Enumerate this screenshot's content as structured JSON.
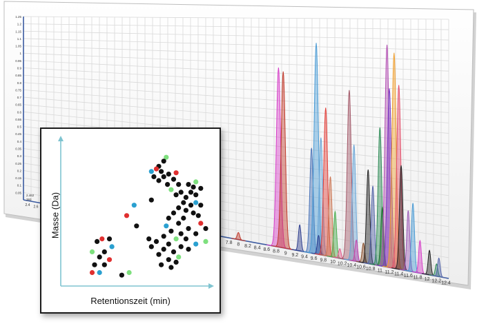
{
  "colors": {
    "axis_blue": "#3a5aa0",
    "inset_axis": "#7fc4d0",
    "grid": "#d9d9d9",
    "panel_edge": "#bdbdbd"
  },
  "chart_data": [
    {
      "type": "area",
      "title": "",
      "xlabel": "",
      "ylabel": "",
      "xlim": [
        7.6,
        12.4
      ],
      "ylim": [
        0,
        1.25
      ],
      "x_ticks": [
        "7.8",
        "8",
        "8.2",
        "8.4",
        "8.6",
        "8.8",
        "9",
        "9.2",
        "9.4",
        "9.6",
        "9.8",
        "10",
        "10.2",
        "10.4",
        "10.6",
        "10.8",
        "11",
        "11.2",
        "11.4",
        "11.6",
        "11.8",
        "12",
        "12.2",
        "12.4"
      ],
      "x_ticks_partial_left": [
        "2.4",
        "2.6"
      ],
      "y_ticks": [
        "0.05",
        "0.1",
        "0.15",
        "0.2",
        "0.25",
        "0.3",
        "0.35",
        "0.4",
        "0.45",
        "0.5",
        "0.55",
        "0.6",
        "0.65",
        "0.7",
        "0.75",
        "0.8",
        "0.85",
        "0.9",
        "0.95",
        "1",
        "1.05",
        "1.1",
        "1.15",
        "1.2",
        "1.25"
      ],
      "readout": [
        "2.462",
        "393"
      ],
      "grid": true,
      "series": [
        {
          "color": "#c0392b",
          "peak_x": 8.0,
          "height": 0.04
        },
        {
          "color": "#d63fc8",
          "peak_x": 8.85,
          "height": 0.98
        },
        {
          "color": "#c0392b",
          "peak_x": 8.95,
          "height": 0.96
        },
        {
          "color": "#2f3f8f",
          "peak_x": 9.3,
          "height": 0.14
        },
        {
          "color": "#4a73b8",
          "peak_x": 9.55,
          "height": 0.56
        },
        {
          "color": "#4a9bd4",
          "peak_x": 9.65,
          "height": 1.12
        },
        {
          "color": "#6aa6d8",
          "peak_x": 9.75,
          "height": 0.62
        },
        {
          "color": "#2f3f8f",
          "peak_x": 9.7,
          "height": 0.1
        },
        {
          "color": "#e2403a",
          "peak_x": 9.85,
          "height": 0.78
        },
        {
          "color": "#cc7755",
          "peak_x": 9.95,
          "height": 0.42
        },
        {
          "color": "#4caf50",
          "peak_x": 10.05,
          "height": 0.24
        },
        {
          "color": "#e45a8c",
          "peak_x": 10.15,
          "height": 0.05
        },
        {
          "color": "#a45a6a",
          "peak_x": 10.35,
          "height": 0.88
        },
        {
          "color": "#6aa6d8",
          "peak_x": 10.45,
          "height": 0.6
        },
        {
          "color": "#cc44aa",
          "peak_x": 10.5,
          "height": 0.11
        },
        {
          "color": "#8a4f2a",
          "peak_x": 10.65,
          "height": 0.1
        },
        {
          "color": "#222222",
          "peak_x": 10.75,
          "height": 0.48
        },
        {
          "color": "#5566aa",
          "peak_x": 10.85,
          "height": 0.4
        },
        {
          "color": "#2e8b57",
          "peak_x": 11.0,
          "height": 0.7
        },
        {
          "color": "#1d6f2e",
          "peak_x": 11.05,
          "height": 0.3
        },
        {
          "color": "#b34fb3",
          "peak_x": 11.15,
          "height": 1.12
        },
        {
          "color": "#7a3cc4",
          "peak_x": 11.2,
          "height": 0.9
        },
        {
          "color": "#f0a030",
          "peak_x": 11.3,
          "height": 1.08
        },
        {
          "color": "#e24f6a",
          "peak_x": 11.4,
          "height": 0.92
        },
        {
          "color": "#222222",
          "peak_x": 11.45,
          "height": 0.52
        },
        {
          "color": "#9b59b6",
          "peak_x": 11.6,
          "height": 0.3
        },
        {
          "color": "#4a9bd4",
          "peak_x": 11.7,
          "height": 0.34
        },
        {
          "color": "#d63fc8",
          "peak_x": 11.85,
          "height": 0.16
        },
        {
          "color": "#222222",
          "peak_x": 12.05,
          "height": 0.12
        },
        {
          "color": "#2e8b57",
          "peak_x": 12.2,
          "height": 0.06
        },
        {
          "color": "#5566aa",
          "peak_x": 12.25,
          "height": 0.09
        }
      ]
    },
    {
      "type": "scatter",
      "title": "",
      "xlabel": "Retentionszeit (min)",
      "ylabel": "Masse (Da)",
      "xlim": [
        0,
        100
      ],
      "ylim": [
        0,
        100
      ],
      "grid": false,
      "points": [
        {
          "x": 72,
          "y": 93,
          "color": "#7ee07e"
        },
        {
          "x": 70,
          "y": 90,
          "color": "#111"
        },
        {
          "x": 66,
          "y": 86,
          "color": "#111"
        },
        {
          "x": 64,
          "y": 84,
          "color": "#e03030"
        },
        {
          "x": 60,
          "y": 82,
          "color": "#2aa0d0"
        },
        {
          "x": 68,
          "y": 82,
          "color": "#111"
        },
        {
          "x": 74,
          "y": 80,
          "color": "#111"
        },
        {
          "x": 80,
          "y": 81,
          "color": "#e03030"
        },
        {
          "x": 62,
          "y": 78,
          "color": "#111"
        },
        {
          "x": 70,
          "y": 78,
          "color": "#111"
        },
        {
          "x": 78,
          "y": 76,
          "color": "#111"
        },
        {
          "x": 66,
          "y": 75,
          "color": "#111"
        },
        {
          "x": 73,
          "y": 72,
          "color": "#111"
        },
        {
          "x": 96,
          "y": 74,
          "color": "#7ee07e"
        },
        {
          "x": 82,
          "y": 72,
          "color": "#111"
        },
        {
          "x": 90,
          "y": 72,
          "color": "#111"
        },
        {
          "x": 94,
          "y": 70,
          "color": "#111"
        },
        {
          "x": 100,
          "y": 69,
          "color": "#111"
        },
        {
          "x": 76,
          "y": 68,
          "color": "#7ee07e"
        },
        {
          "x": 84,
          "y": 66,
          "color": "#111"
        },
        {
          "x": 92,
          "y": 66,
          "color": "#111"
        },
        {
          "x": 96,
          "y": 64,
          "color": "#111"
        },
        {
          "x": 80,
          "y": 64,
          "color": "#111"
        },
        {
          "x": 88,
          "y": 62,
          "color": "#111"
        },
        {
          "x": 96,
          "y": 58,
          "color": "#2aa0d0"
        },
        {
          "x": 100,
          "y": 56,
          "color": "#111"
        },
        {
          "x": 92,
          "y": 56,
          "color": "#111"
        },
        {
          "x": 86,
          "y": 58,
          "color": "#111"
        },
        {
          "x": 82,
          "y": 54,
          "color": "#111"
        },
        {
          "x": 88,
          "y": 52,
          "color": "#111"
        },
        {
          "x": 94,
          "y": 50,
          "color": "#111"
        },
        {
          "x": 78,
          "y": 50,
          "color": "#111"
        },
        {
          "x": 86,
          "y": 46,
          "color": "#111"
        },
        {
          "x": 98,
          "y": 48,
          "color": "#111"
        },
        {
          "x": 74,
          "y": 46,
          "color": "#111"
        },
        {
          "x": 82,
          "y": 42,
          "color": "#111"
        },
        {
          "x": 100,
          "y": 42,
          "color": "#e03030"
        },
        {
          "x": 72,
          "y": 40,
          "color": "#2aa0d0"
        },
        {
          "x": 90,
          "y": 38,
          "color": "#111"
        },
        {
          "x": 104,
          "y": 38,
          "color": "#111"
        },
        {
          "x": 76,
          "y": 36,
          "color": "#111"
        },
        {
          "x": 84,
          "y": 34,
          "color": "#111"
        },
        {
          "x": 96,
          "y": 34,
          "color": "#111"
        },
        {
          "x": 70,
          "y": 32,
          "color": "#111"
        },
        {
          "x": 80,
          "y": 30,
          "color": "#7ee07e"
        },
        {
          "x": 88,
          "y": 30,
          "color": "#111"
        },
        {
          "x": 104,
          "y": 28,
          "color": "#7ee07e"
        },
        {
          "x": 64,
          "y": 28,
          "color": "#111"
        },
        {
          "x": 74,
          "y": 26,
          "color": "#111"
        },
        {
          "x": 84,
          "y": 24,
          "color": "#111"
        },
        {
          "x": 96,
          "y": 26,
          "color": "#2aa0d0"
        },
        {
          "x": 60,
          "y": 24,
          "color": "#111"
        },
        {
          "x": 70,
          "y": 22,
          "color": "#111"
        },
        {
          "x": 78,
          "y": 20,
          "color": "#111"
        },
        {
          "x": 90,
          "y": 22,
          "color": "#111"
        },
        {
          "x": 66,
          "y": 18,
          "color": "#111"
        },
        {
          "x": 82,
          "y": 16,
          "color": "#7ee07e"
        },
        {
          "x": 74,
          "y": 14,
          "color": "#111"
        },
        {
          "x": 68,
          "y": 10,
          "color": "#111"
        },
        {
          "x": 76,
          "y": 8,
          "color": "#111"
        },
        {
          "x": 80,
          "y": 12,
          "color": "#111"
        },
        {
          "x": 58,
          "y": 30,
          "color": "#111"
        },
        {
          "x": 60,
          "y": 60,
          "color": "#111"
        },
        {
          "x": 46,
          "y": 56,
          "color": "#2aa0d0"
        },
        {
          "x": 40,
          "y": 48,
          "color": "#e03030"
        },
        {
          "x": 48,
          "y": 40,
          "color": "#111"
        },
        {
          "x": 20,
          "y": 30,
          "color": "#e03030"
        },
        {
          "x": 26,
          "y": 30,
          "color": "#111"
        },
        {
          "x": 16,
          "y": 28,
          "color": "#111"
        },
        {
          "x": 28,
          "y": 24,
          "color": "#2aa0d0"
        },
        {
          "x": 12,
          "y": 20,
          "color": "#7ee07e"
        },
        {
          "x": 22,
          "y": 20,
          "color": "#111"
        },
        {
          "x": 18,
          "y": 16,
          "color": "#111"
        },
        {
          "x": 26,
          "y": 14,
          "color": "#e03030"
        },
        {
          "x": 14,
          "y": 10,
          "color": "#111"
        },
        {
          "x": 22,
          "y": 10,
          "color": "#111"
        },
        {
          "x": 12,
          "y": 4,
          "color": "#e03030"
        },
        {
          "x": 18,
          "y": 4,
          "color": "#2aa0d0"
        },
        {
          "x": 36,
          "y": 2,
          "color": "#111"
        },
        {
          "x": 42,
          "y": 4,
          "color": "#7ee07e"
        }
      ]
    }
  ]
}
